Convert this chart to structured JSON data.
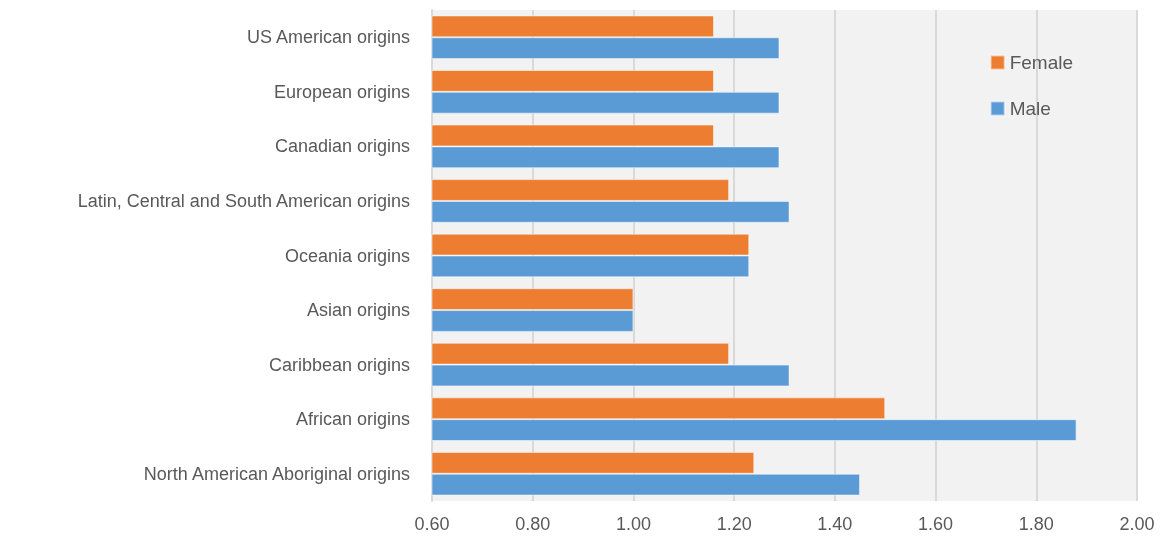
{
  "chart_data": {
    "type": "bar",
    "orientation": "horizontal",
    "categories": [
      "US American origins",
      "European origins",
      "Canadian origins",
      "Latin, Central and South American origins",
      "Oceania origins",
      "Asian origins",
      "Caribbean origins",
      "African origins",
      "North American Aboriginal origins"
    ],
    "series": [
      {
        "name": "Female",
        "color": "#ed7d31",
        "values": [
          1.16,
          1.16,
          1.16,
          1.19,
          1.23,
          1.0,
          1.19,
          1.5,
          1.24
        ]
      },
      {
        "name": "Male",
        "color": "#5b9bd5",
        "values": [
          1.29,
          1.29,
          1.29,
          1.31,
          1.23,
          1.0,
          1.31,
          1.88,
          1.45
        ]
      }
    ],
    "xlim": [
      0.6,
      2.0
    ],
    "xticks": [
      {
        "value": 0.6,
        "label": "0.60"
      },
      {
        "value": 0.8,
        "label": "0.80"
      },
      {
        "value": 1.0,
        "label": "1.00"
      },
      {
        "value": 1.2,
        "label": "1.20"
      },
      {
        "value": 1.4,
        "label": "1.40"
      },
      {
        "value": 1.6,
        "label": "1.60"
      },
      {
        "value": 1.8,
        "label": "1.80"
      },
      {
        "value": 2.0,
        "label": "2.00"
      }
    ],
    "grid": "x",
    "legend": "top right"
  }
}
